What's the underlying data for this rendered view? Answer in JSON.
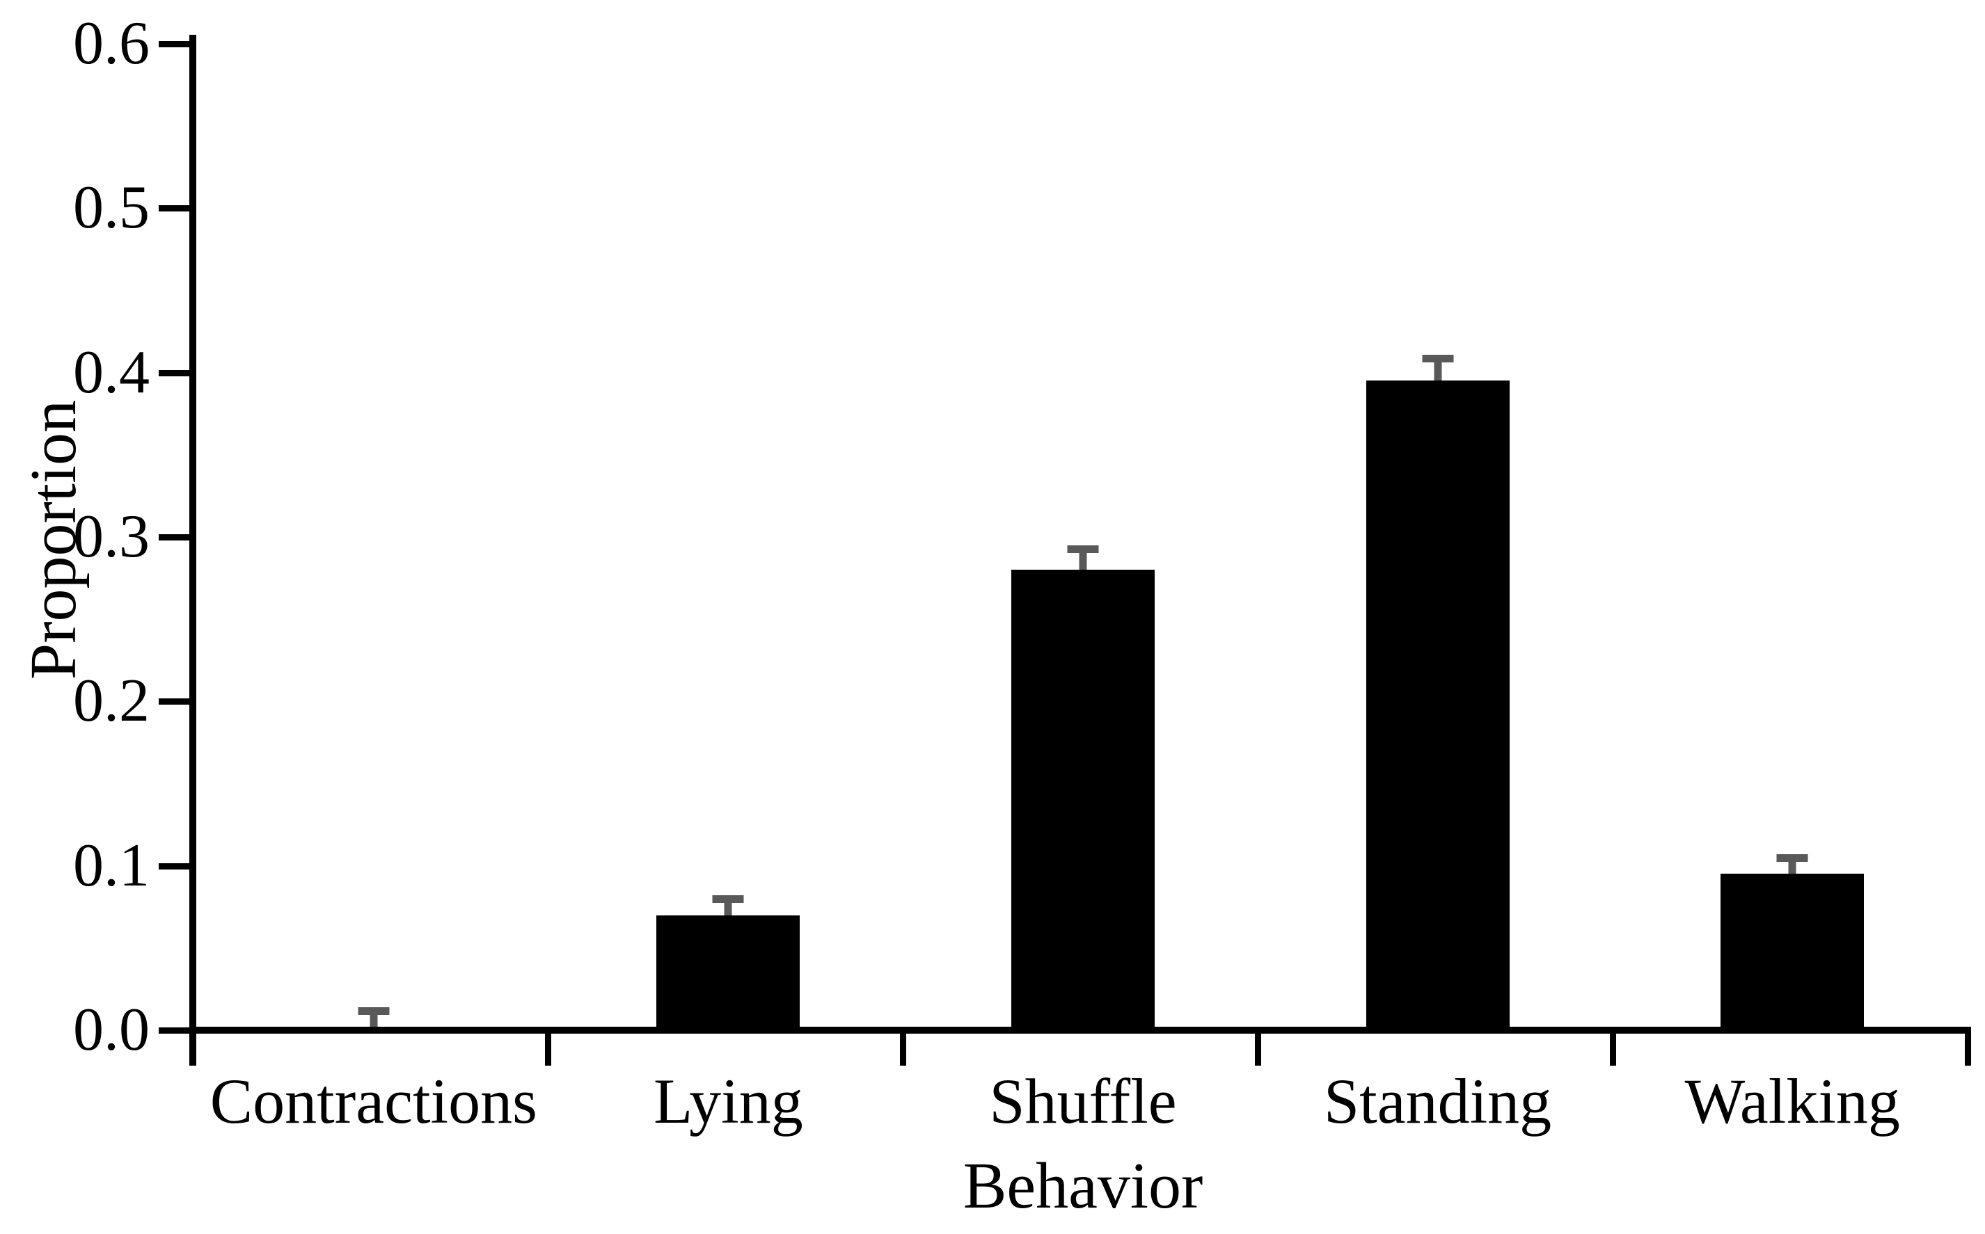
{
  "chart_data": {
    "type": "bar",
    "title": "",
    "xlabel": "Behavior",
    "ylabel": "Proportion",
    "categories": [
      "Contractions",
      "Lying",
      "Shuffle",
      "Standing",
      "Walking"
    ],
    "values": [
      0.002,
      0.07,
      0.28,
      0.395,
      0.095
    ],
    "errors_plus": [
      0.012,
      0.012,
      0.015,
      0.016,
      0.012
    ],
    "ylim": [
      0,
      0.6
    ],
    "ytick_labels": [
      "0.0",
      "0.1",
      "0.2",
      "0.3",
      "0.4",
      "0.5",
      "0.6"
    ],
    "ytick_values": [
      0.0,
      0.1,
      0.2,
      0.3,
      0.4,
      0.5,
      0.6
    ],
    "grid": "off",
    "legend": "none",
    "bar_color": "#000000",
    "error_bar_color": "#595959",
    "axis_color": "#000000",
    "background_color": "#ffffff"
  }
}
